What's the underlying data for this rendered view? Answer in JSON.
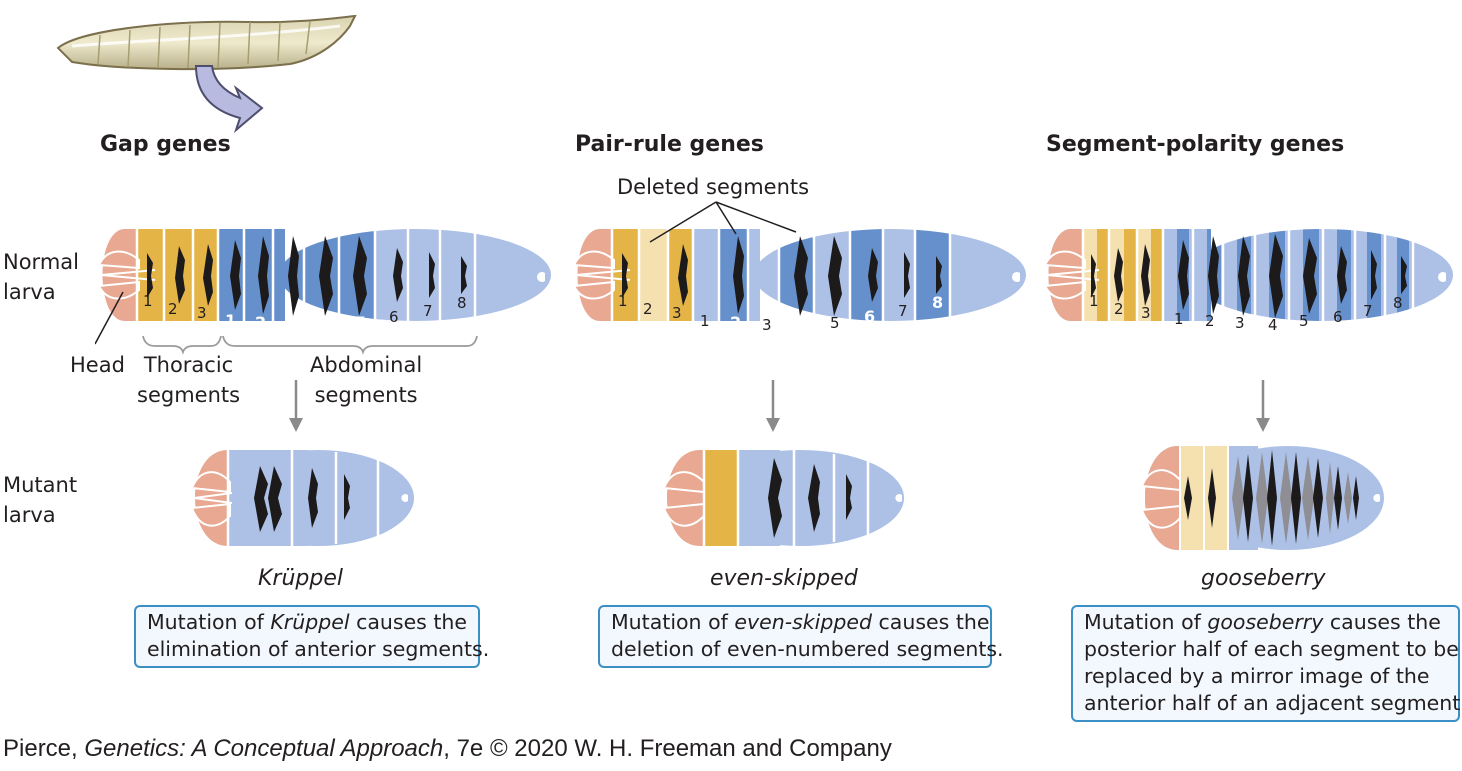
{
  "labels": {
    "normal_larva": [
      "Normal",
      "larva"
    ],
    "mutant_larva": [
      "Mutant",
      "larva"
    ],
    "head": "Head",
    "thoracic": [
      "Thoracic",
      "segments"
    ],
    "abdominal": [
      "Abdominal",
      "segments"
    ],
    "deleted_segments": "Deleted segments"
  },
  "columns": [
    {
      "header": "Gap genes",
      "gene": "Krüppel",
      "caption": {
        "before": "Mutation of ",
        "gene": "Krüppel",
        "after_lines": [
          " causes the",
          "elimination of anterior segments."
        ]
      }
    },
    {
      "header": "Pair-rule genes",
      "gene": "even-skipped",
      "caption": {
        "before": "Mutation of ",
        "gene": "even-skipped",
        "after_lines": [
          " causes the",
          "deletion of even-numbered segments."
        ]
      }
    },
    {
      "header": "Segment-polarity genes",
      "gene": "gooseberry",
      "caption": {
        "before": "Mutation of ",
        "gene": "gooseberry",
        "after_lines": [
          " causes the",
          "posterior half of each segment to be",
          "replaced by a mirror image of the",
          "anterior half of an adjacent segment."
        ]
      }
    }
  ],
  "segment_numbers": {
    "thoracic": [
      "1",
      "2",
      "3"
    ],
    "abdominal": [
      "1",
      "2",
      "3",
      "4",
      "5",
      "6",
      "7",
      "8"
    ]
  },
  "credit": {
    "author": "Pierce, ",
    "title": "Genetics: A Conceptual Approach",
    "rest": ", 7e © 2020 W. H. Freeman and Company"
  },
  "colors": {
    "head": "#e8a892",
    "thoracic": "#e5b447",
    "thoracic_pale": "#f5e1b0",
    "abdominal_dark": "#6690cc",
    "abdominal_light": "#adc0e6",
    "band": "#1c1a1b",
    "caption_border": "#3b8fc4",
    "arrow": "#8a8a8a"
  }
}
